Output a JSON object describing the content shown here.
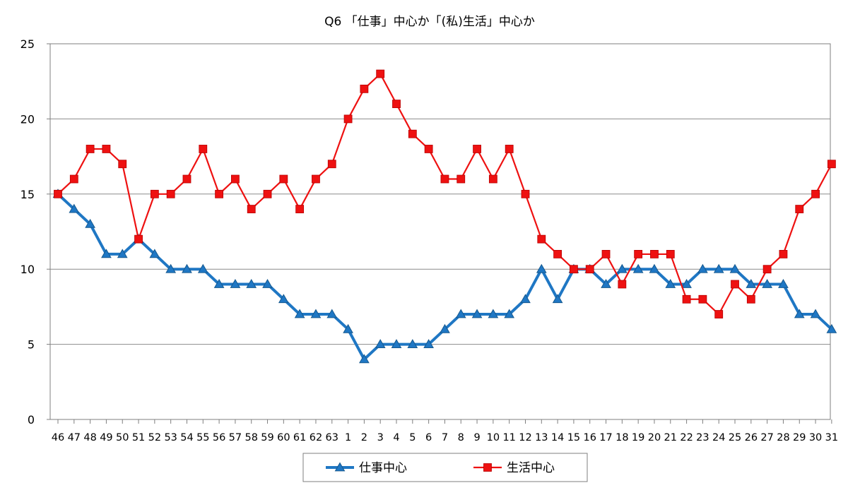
{
  "chart_data": {
    "type": "line",
    "title": "Q6 「仕事」中心か「(私)生活」中心か",
    "xlabel": "",
    "ylabel": "",
    "ylim": [
      0,
      25
    ],
    "yticks": [
      0,
      5,
      10,
      15,
      20,
      25
    ],
    "grid": true,
    "legend_position": "bottom",
    "categories": [
      "46",
      "47",
      "48",
      "49",
      "50",
      "51",
      "52",
      "53",
      "54",
      "55",
      "56",
      "57",
      "58",
      "59",
      "60",
      "61",
      "62",
      "63",
      "1",
      "2",
      "3",
      "4",
      "5",
      "6",
      "7",
      "8",
      "9",
      "10",
      "11",
      "12",
      "13",
      "14",
      "15",
      "16",
      "17",
      "18",
      "19",
      "20",
      "21",
      "22",
      "23",
      "24",
      "25",
      "26",
      "27",
      "28",
      "29",
      "30",
      "31"
    ],
    "series": [
      {
        "name": "仕事中心",
        "color": "#1f77c4",
        "marker": "triangle",
        "values": [
          15,
          14,
          13,
          11,
          11,
          12,
          11,
          10,
          10,
          10,
          9,
          9,
          9,
          9,
          8,
          7,
          7,
          7,
          6,
          4,
          5,
          5,
          5,
          5,
          6,
          7,
          7,
          7,
          7,
          8,
          10,
          8,
          10,
          10,
          9,
          10,
          10,
          10,
          9,
          9,
          10,
          10,
          10,
          9,
          9,
          9,
          7,
          7,
          6
        ]
      },
      {
        "name": "生活中心",
        "color": "#ee1111",
        "marker": "square",
        "values": [
          15,
          16,
          18,
          18,
          17,
          12,
          15,
          15,
          16,
          18,
          15,
          16,
          14,
          15,
          16,
          14,
          16,
          17,
          20,
          22,
          23,
          21,
          19,
          18,
          16,
          16,
          18,
          16,
          18,
          15,
          12,
          11,
          10,
          10,
          11,
          9,
          11,
          11,
          11,
          8,
          8,
          7,
          9,
          8,
          10,
          11,
          14,
          15,
          17
        ]
      }
    ]
  }
}
